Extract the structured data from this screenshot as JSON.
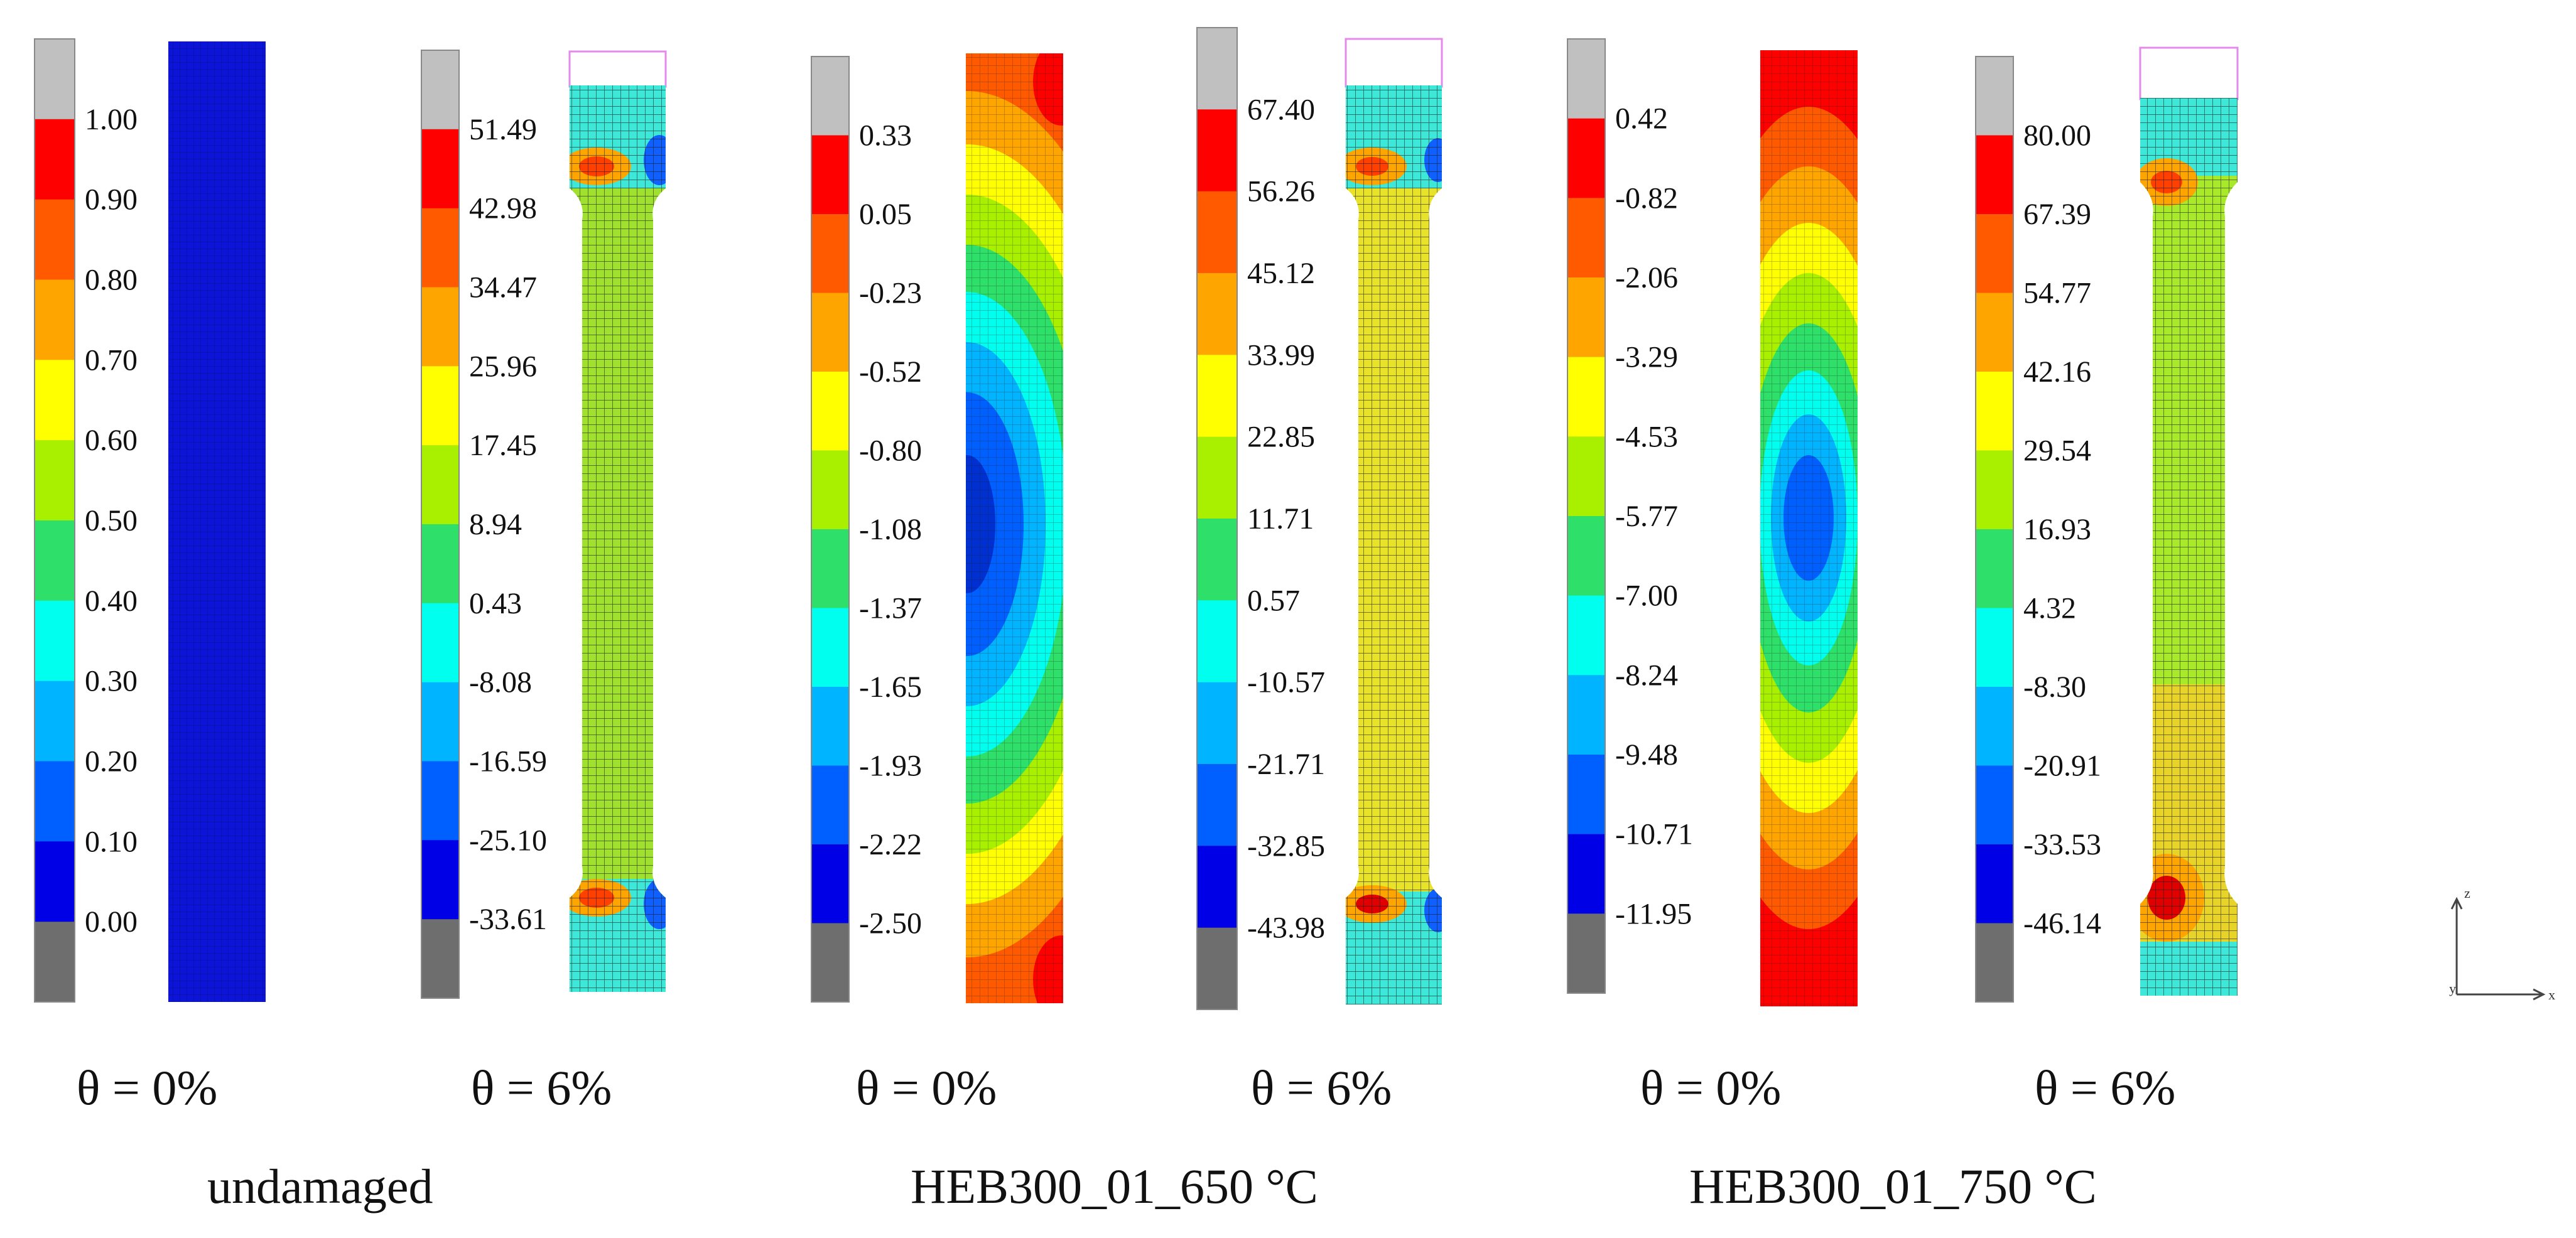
{
  "palette": [
    "#c0c0c0",
    "#ff0000",
    "#ff5a00",
    "#ffa500",
    "#ffff00",
    "#a8f000",
    "#2ee06a",
    "#00ffee",
    "#00b4ff",
    "#0060ff",
    "#0000e6",
    "#6e6e6e"
  ],
  "colorbars": [
    {
      "labels": [
        "1.00",
        "0.90",
        "0.80",
        "0.70",
        "0.60",
        "0.50",
        "0.40",
        "0.30",
        "0.20",
        "0.10",
        "0.00"
      ]
    },
    {
      "labels": [
        "51.49",
        "42.98",
        "34.47",
        "25.96",
        "17.45",
        "8.94",
        "0.43",
        "-8.08",
        "-16.59",
        "-25.10",
        "-33.61"
      ]
    },
    {
      "labels": [
        "0.33",
        "0.05",
        "-0.23",
        "-0.52",
        "-0.80",
        "-1.08",
        "-1.37",
        "-1.65",
        "-1.93",
        "-2.22",
        "-2.50"
      ]
    },
    {
      "labels": [
        "67.40",
        "56.26",
        "45.12",
        "33.99",
        "22.85",
        "11.71",
        "0.57",
        "-10.57",
        "-21.71",
        "-32.85",
        "-43.98"
      ]
    },
    {
      "labels": [
        "0.42",
        "-0.82",
        "-2.06",
        "-3.29",
        "-4.53",
        "-5.77",
        "-7.00",
        "-8.24",
        "-9.48",
        "-10.71",
        "-11.95"
      ]
    },
    {
      "labels": [
        "80.00",
        "67.39",
        "54.77",
        "42.16",
        "29.54",
        "16.93",
        "4.32",
        "-8.30",
        "-20.91",
        "-33.53",
        "-46.14"
      ]
    }
  ],
  "panels": [
    {
      "theta": "θ = 0%",
      "state": "undamaged uniform"
    },
    {
      "theta": "θ = 6%",
      "state": "necked"
    },
    {
      "theta": "θ = 0%",
      "state": "thermal gradient"
    },
    {
      "theta": "θ = 6%",
      "state": "necked"
    },
    {
      "theta": "θ = 0%",
      "state": "thermal gradient"
    },
    {
      "theta": "θ = 6%",
      "state": "necked"
    }
  ],
  "groups": [
    "undamaged",
    "HEB300_01_650 °C",
    "HEB300_01_750 °C"
  ],
  "axes": {
    "z": "z",
    "y": "y",
    "x": "x"
  }
}
